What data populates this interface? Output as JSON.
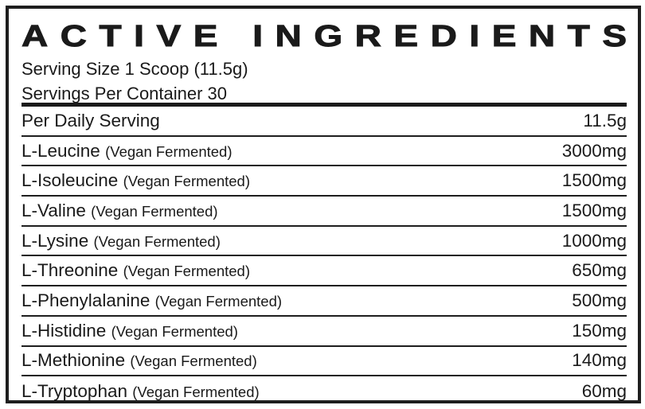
{
  "title": "ACTIVE INGREDIENTS",
  "serving_size": "Serving Size 1 Scoop (11.5g)",
  "servings_per_container": "Servings Per Container 30",
  "header_row": {
    "label": "Per Daily Serving",
    "amount": "11.5g"
  },
  "ingredients": [
    {
      "name": "L-Leucine",
      "note": "(Vegan Fermented)",
      "amount": "3000mg"
    },
    {
      "name": "L-Isoleucine",
      "note": "(Vegan Fermented)",
      "amount": "1500mg"
    },
    {
      "name": "L-Valine",
      "note": "(Vegan Fermented)",
      "amount": "1500mg"
    },
    {
      "name": "L-Lysine",
      "note": "(Vegan Fermented)",
      "amount": "1000mg"
    },
    {
      "name": "L-Threonine",
      "note": "(Vegan Fermented)",
      "amount": "650mg"
    },
    {
      "name": "L-Phenylalanine",
      "note": "(Vegan Fermented)",
      "amount": "500mg"
    },
    {
      "name": "L-Histidine",
      "note": "(Vegan Fermented)",
      "amount": "150mg"
    },
    {
      "name": "L-Methionine",
      "note": "(Vegan Fermented)",
      "amount": "140mg"
    },
    {
      "name": "L-Tryptophan",
      "note": "(Vegan Fermented)",
      "amount": "60mg"
    }
  ]
}
